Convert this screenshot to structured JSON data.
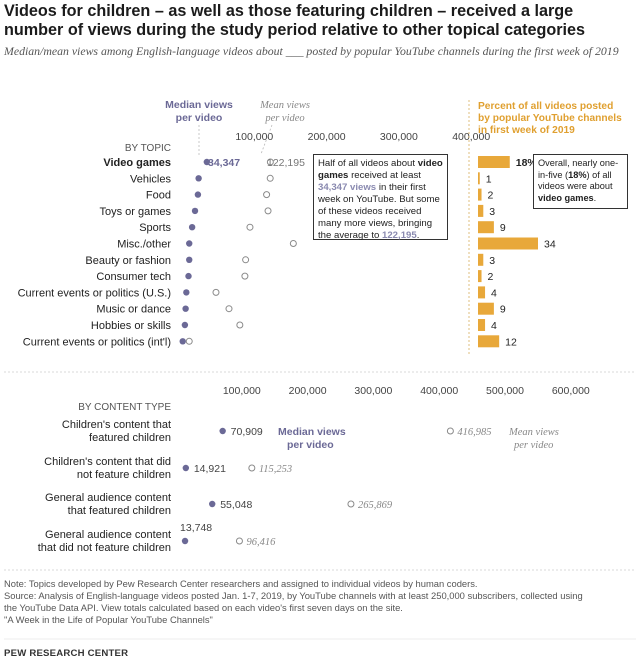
{
  "header": {
    "title": "Videos for children – as well as those featuring children – received a large number of views during the study period relative to other topical categories",
    "subtitle": "Median/mean views among English-language videos about ___ posted by popular YouTube channels during the first week of 2019"
  },
  "colors": {
    "median_dot": "#6b6996",
    "mean_dot_outline": "#8a8a8a",
    "bar": "#e8a83a",
    "bar_label": "#e0a030",
    "divider": "#d8b060"
  },
  "chart_data": [
    {
      "type": "scatter",
      "title": "",
      "group_label": "BY TOPIC",
      "legend": [
        "Median views per video",
        "Mean views per video"
      ],
      "x_ticks": [
        "100,000",
        "200,000",
        "300,000",
        "400,000"
      ],
      "xlim": [
        0,
        450000
      ],
      "categories": [
        "Video games",
        "Vehicles",
        "Food",
        "Toys or games",
        "Sports",
        "Misc./other",
        "Beauty or fashion",
        "Consumer tech",
        "Current events or politics (U.S.)",
        "Music or dance",
        "Hobbies or skills",
        "Current events or politics (int'l)"
      ],
      "series": [
        {
          "name": "Median views per video",
          "values": [
            34347,
            23000,
            22000,
            18000,
            14000,
            10000,
            10000,
            9000,
            6000,
            5000,
            4000,
            1000
          ]
        },
        {
          "name": "Mean views per video",
          "values": [
            122195,
            122000,
            117000,
            119000,
            94000,
            154000,
            88000,
            87000,
            47000,
            65000,
            80000,
            10000
          ]
        }
      ],
      "labels": {
        "median": "34,347",
        "mean": "122,195"
      },
      "annotation": {
        "t1": "Half of all videos about ",
        "t2": "video games",
        "t3": " received at least ",
        "t4": "34,347 views",
        "t5": " in their first week on YouTube. But some of these videos received many more views, bringing the average to ",
        "t6": "122,195",
        "t7": "."
      }
    },
    {
      "type": "bar",
      "title": "Percent of all videos posted by popular YouTube channels in first week of 2019",
      "categories": [
        "Video games",
        "Vehicles",
        "Food",
        "Toys or games",
        "Sports",
        "Misc./other",
        "Beauty or fashion",
        "Consumer tech",
        "Current events or politics (U.S.)",
        "Music or dance",
        "Hobbies or skills",
        "Current events or politics (int'l)"
      ],
      "values": [
        18,
        1,
        2,
        3,
        9,
        34,
        3,
        2,
        4,
        9,
        4,
        12
      ],
      "value_labels": [
        "18%",
        "1",
        "2",
        "3",
        "9",
        "34",
        "3",
        "2",
        "4",
        "9",
        "4",
        "12"
      ],
      "xlim": [
        0,
        34
      ],
      "annotation": {
        "t1": "Overall, nearly one-in-five (",
        "t2": "18%",
        "t3": ") of all videos were about ",
        "t4": "video games",
        "t5": "."
      }
    },
    {
      "type": "scatter",
      "title": "",
      "group_label": "BY CONTENT TYPE",
      "legend": [
        "Median views per video",
        "Mean views per video"
      ],
      "x_ticks": [
        "100,000",
        "200,000",
        "300,000",
        "400,000",
        "500,000",
        "600,000"
      ],
      "xlim": [
        0,
        650000
      ],
      "categories": [
        [
          "Children's content that",
          "featured children"
        ],
        [
          "Children's content that did",
          "not feature children"
        ],
        [
          "General audience content",
          "that featured children"
        ],
        [
          "General audience content",
          "that did not feature children"
        ]
      ],
      "series": [
        {
          "name": "Median views per video",
          "values": [
            70909,
            14921,
            55048,
            13748
          ]
        },
        {
          "name": "Mean views per video",
          "values": [
            416985,
            115253,
            265869,
            96416
          ]
        }
      ],
      "median_labels": [
        "70,909",
        "14,921",
        "55,048",
        "13,748"
      ],
      "mean_labels": [
        "416,985",
        "115,253",
        "265,869",
        "96,416"
      ]
    }
  ],
  "footer": {
    "note": "Note: Topics developed by Pew Research Center researchers and assigned to individual videos by human coders.",
    "source1": "Source: Analysis of English-language videos posted Jan. 1-7, 2019, by YouTube channels with at least 250,000 subscribers, collected using",
    "source2": "the YouTube Data API. View totals calculated based on each video's first seven days on the site.",
    "source3": "\"A Week in the Life of Popular YouTube Channels\"",
    "brand": "PEW RESEARCH CENTER"
  }
}
